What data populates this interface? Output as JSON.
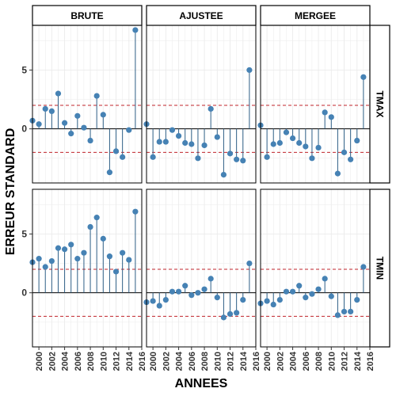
{
  "chart_data": {
    "type": "lollipop",
    "ylabel": "ERREUR STANDARD",
    "xlabel": "ANNEES",
    "xlim": [
      1999,
      2016
    ],
    "ylim": [
      -4.6,
      8.8
    ],
    "x_ticks": [
      2000,
      2002,
      2004,
      2006,
      2008,
      2010,
      2012,
      2014,
      2016
    ],
    "y_ticks": [
      0,
      5
    ],
    "reference_lines": [
      2,
      -2
    ],
    "grid": true,
    "column_facets": [
      "BRUTE",
      "AJUSTEE",
      "MERGEE"
    ],
    "row_facets": [
      "TMAX",
      "TMIN"
    ],
    "colors": {
      "point": "#4682b4",
      "stem": "#2e5f86",
      "reference": "#c0242b",
      "zero": "#000000",
      "grid": "#ebebeb",
      "strip": "#ffffff"
    },
    "panels": [
      {
        "row": "TMAX",
        "col": "BRUTE",
        "x": [
          1999,
          2000,
          2001,
          2002,
          2003,
          2004,
          2005,
          2006,
          2007,
          2008,
          2009,
          2010,
          2011,
          2012,
          2013,
          2014,
          2015
        ],
        "y": [
          0.7,
          0.4,
          1.7,
          1.5,
          3.0,
          0.5,
          -0.4,
          1.1,
          0.1,
          -1.0,
          2.8,
          1.2,
          -3.7,
          -1.9,
          -2.4,
          -0.1,
          8.4
        ]
      },
      {
        "row": "TMAX",
        "col": "AJUSTEE",
        "x": [
          1999,
          2000,
          2001,
          2002,
          2003,
          2004,
          2005,
          2006,
          2007,
          2008,
          2009,
          2010,
          2011,
          2012,
          2013,
          2014,
          2015
        ],
        "y": [
          0.4,
          -2.4,
          -1.1,
          -1.1,
          -0.1,
          -0.6,
          -1.2,
          -1.3,
          -2.5,
          -1.4,
          1.7,
          -0.7,
          -3.9,
          -2.1,
          -2.6,
          -2.7,
          5.0
        ]
      },
      {
        "row": "TMAX",
        "col": "MERGEE",
        "x": [
          1999,
          2000,
          2001,
          2002,
          2003,
          2004,
          2005,
          2006,
          2007,
          2008,
          2009,
          2010,
          2011,
          2012,
          2013,
          2014,
          2015
        ],
        "y": [
          0.3,
          -2.4,
          -1.3,
          -1.2,
          -0.3,
          -0.8,
          -1.2,
          -1.5,
          -2.5,
          -1.6,
          1.4,
          1.0,
          -3.8,
          -2.0,
          -2.6,
          -1.0,
          4.4
        ]
      },
      {
        "row": "TMIN",
        "col": "BRUTE",
        "x": [
          1999,
          2000,
          2001,
          2002,
          2003,
          2004,
          2005,
          2006,
          2007,
          2008,
          2009,
          2010,
          2011,
          2012,
          2013,
          2014,
          2015
        ],
        "y": [
          2.6,
          2.9,
          2.2,
          2.7,
          3.8,
          3.7,
          4.1,
          2.9,
          3.4,
          5.6,
          6.4,
          4.6,
          3.1,
          1.8,
          3.4,
          2.8,
          6.9
        ]
      },
      {
        "row": "TMIN",
        "col": "AJUSTEE",
        "x": [
          1999,
          2000,
          2001,
          2002,
          2003,
          2004,
          2005,
          2006,
          2007,
          2008,
          2009,
          2010,
          2011,
          2012,
          2013,
          2014,
          2015
        ],
        "y": [
          -0.8,
          -0.7,
          -1.1,
          -0.6,
          0.1,
          0.1,
          0.6,
          -0.2,
          0.0,
          0.3,
          1.2,
          -0.4,
          -2.1,
          -1.8,
          -1.7,
          -0.6,
          2.5
        ]
      },
      {
        "row": "TMIN",
        "col": "MERGEE",
        "x": [
          1999,
          2000,
          2001,
          2002,
          2003,
          2004,
          2005,
          2006,
          2007,
          2008,
          2009,
          2010,
          2011,
          2012,
          2013,
          2014,
          2015
        ],
        "y": [
          -0.9,
          -0.7,
          -1.0,
          -0.6,
          0.1,
          0.1,
          0.6,
          -0.4,
          -0.1,
          0.3,
          1.2,
          -0.3,
          -1.9,
          -1.6,
          -1.6,
          -0.6,
          2.2
        ]
      }
    ]
  }
}
